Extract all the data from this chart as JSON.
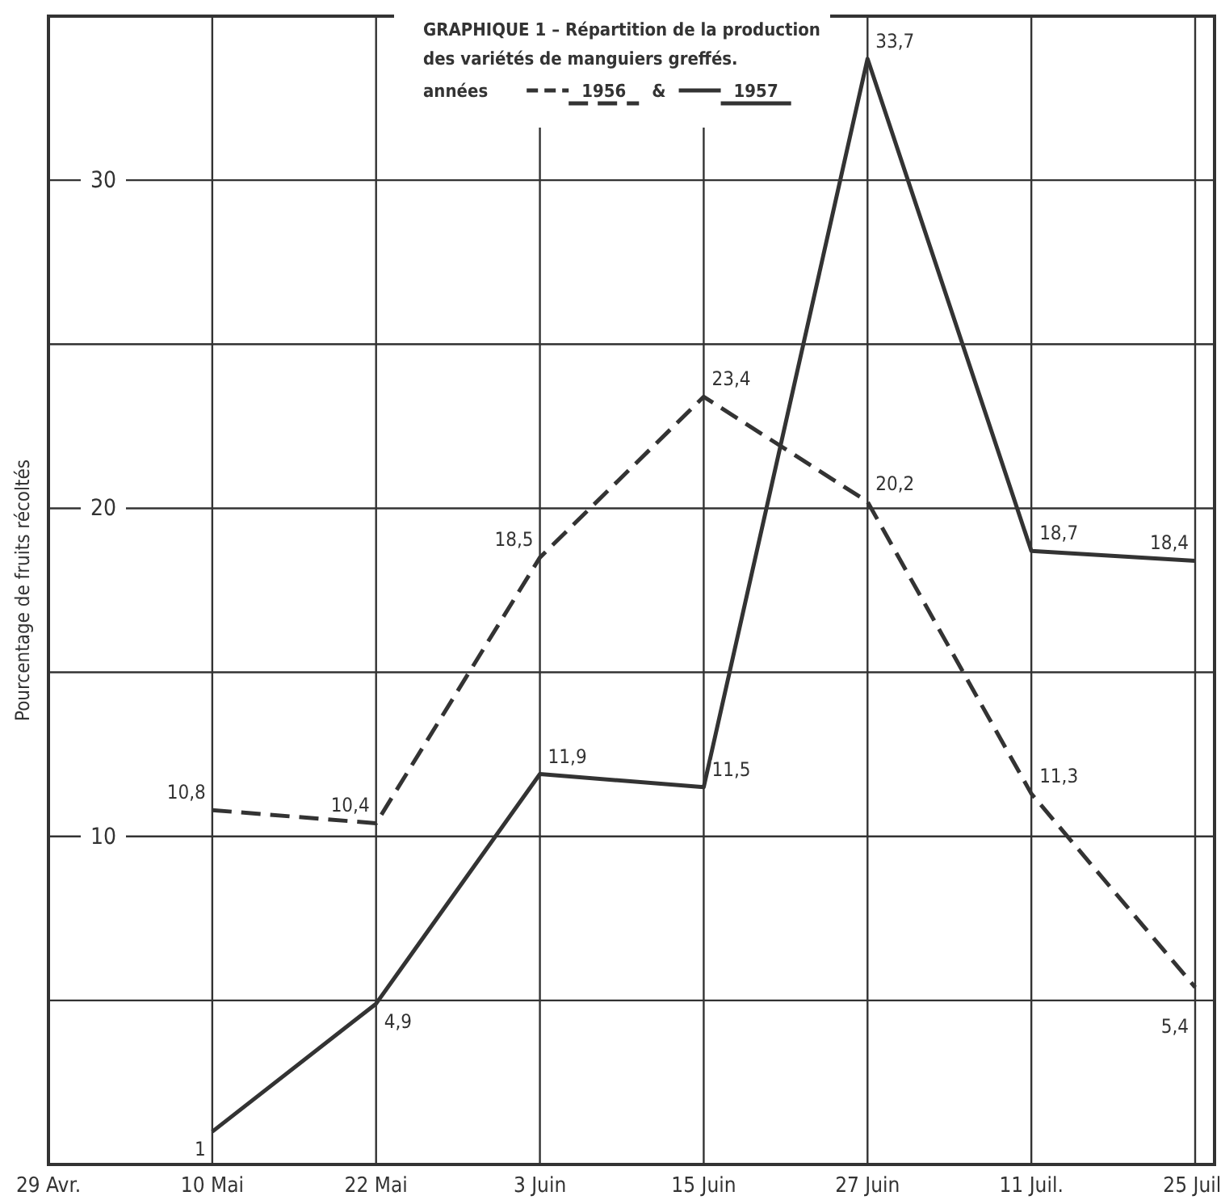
{
  "chart_data": {
    "type": "line",
    "title": "GRAPHIQUE 1 – Répartition de la production des variétés de manguiers greffés.",
    "legend_title": "années",
    "ylabel": "Pourcentage de fruits récoltés",
    "categories": [
      "29 Avr.",
      "10 Mai",
      "22 Mai",
      "3 Juin",
      "15 Juin",
      "27 Juin",
      "11 Juil.",
      "25 Juil."
    ],
    "series": [
      {
        "name": "1956",
        "color": "#333333",
        "line_style": "dashed",
        "values": [
          null,
          10.8,
          10.4,
          18.5,
          23.4,
          20.2,
          11.3,
          5.4
        ],
        "value_labels": [
          null,
          "10,8",
          "10,4",
          "18,5",
          "23,4",
          "20,2",
          "11,3",
          "5,4"
        ]
      },
      {
        "name": "1957",
        "color": "#333333",
        "line_style": "solid",
        "values": [
          null,
          1,
          4.9,
          11.9,
          11.5,
          33.7,
          18.7,
          18.4
        ],
        "value_labels": [
          null,
          "1",
          "4,9",
          "11,9",
          "11,5",
          "33,7",
          "18,7",
          "18,4"
        ]
      }
    ],
    "annotations": [
      "&"
    ],
    "ylim": [
      0,
      35
    ],
    "yticks": [
      {
        "value": 5,
        "label": null
      },
      10,
      {
        "value": 15,
        "label": null
      },
      20,
      {
        "value": 25,
        "label": null
      },
      30
    ],
    "grid": true,
    "legend": "top left",
    "marker": "none"
  }
}
